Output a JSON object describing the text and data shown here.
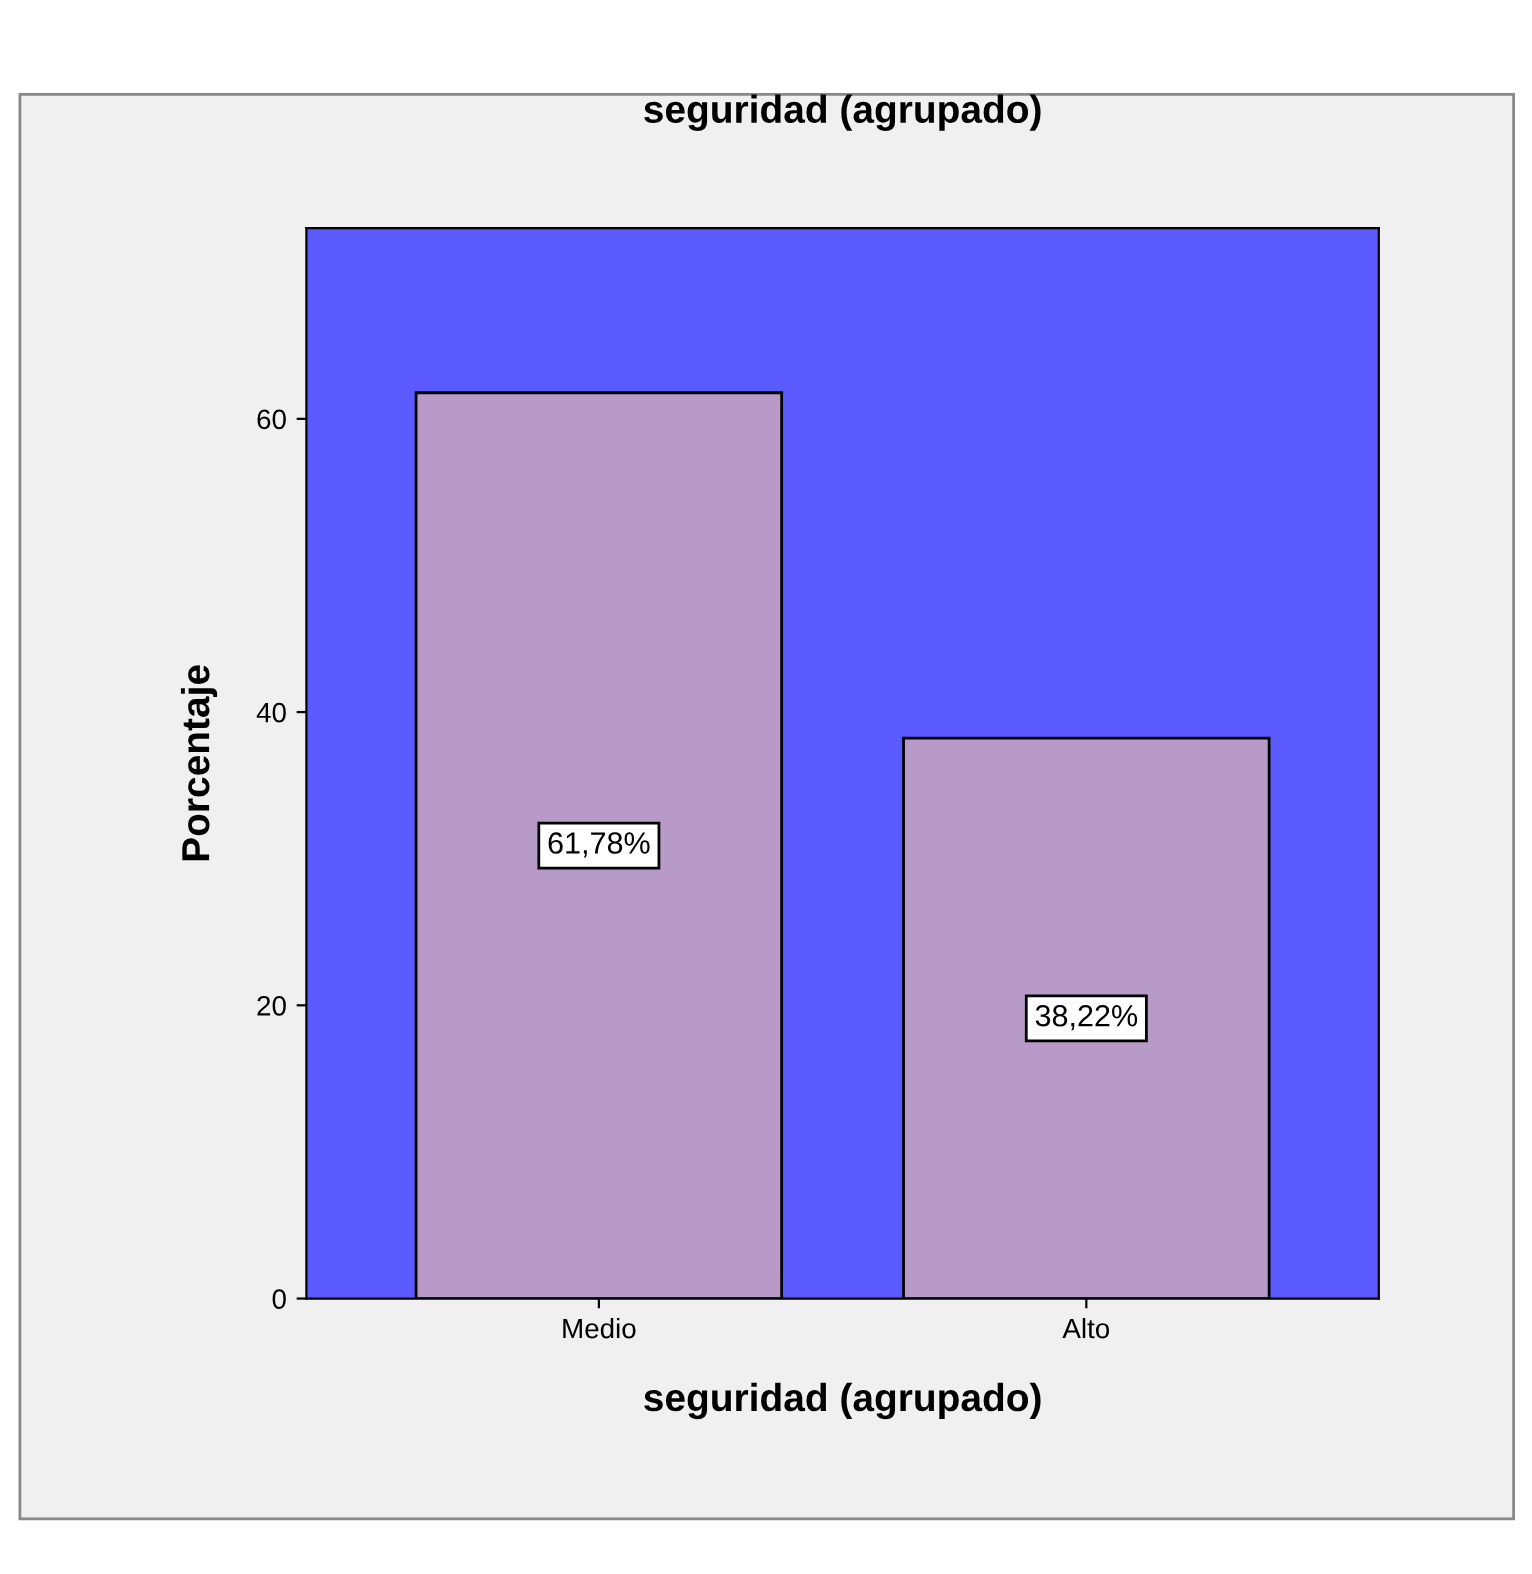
{
  "chart_data": {
    "type": "bar",
    "title": "seguridad (agrupado)",
    "xlabel": "seguridad (agrupado)",
    "ylabel": "Porcentaje",
    "categories": [
      "Medio",
      "Alto"
    ],
    "values": [
      61.78,
      38.22
    ],
    "value_labels": [
      "61,78%",
      "38,22%"
    ],
    "color": "#b89ac8",
    "ylim": [
      0,
      73
    ],
    "yticks": [
      0,
      20,
      40,
      60
    ]
  }
}
